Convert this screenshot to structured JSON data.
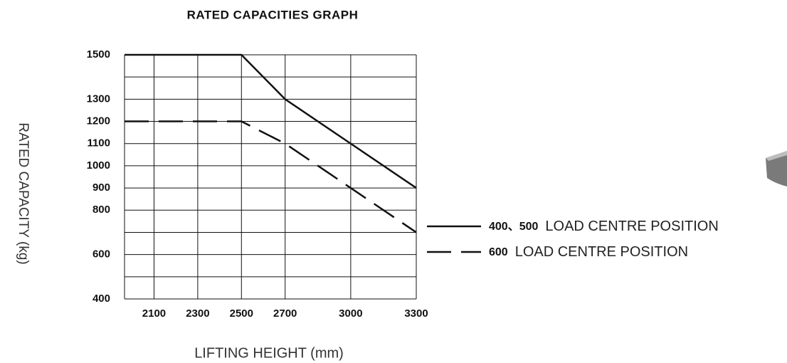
{
  "chart_data": {
    "type": "line",
    "title": "RATED CAPACITIES GRAPH",
    "x_label": "LIFTING HEIGHT (mm)",
    "y_label": "RATED CAPACITY (kg)",
    "x": [
      1965,
      2500,
      2700,
      3000,
      3300
    ],
    "series": [
      {
        "name": "400、500",
        "name_suffix": "LOAD CENTRE POSITION",
        "color": "#111111",
        "dash": "solid",
        "values": [
          1500,
          1500,
          1300,
          1100,
          900
        ]
      },
      {
        "name": "600",
        "name_suffix": "LOAD CENTRE POSITION",
        "color": "#111111",
        "dash": "dashed",
        "values": [
          1200,
          1200,
          1100,
          900,
          700
        ]
      }
    ],
    "xlim": [
      1965,
      3300
    ],
    "xticks": [
      2100,
      2300,
      2500,
      2700,
      3000,
      3300
    ],
    "ylim": [
      400,
      1500
    ],
    "yticks": [
      400,
      600,
      800,
      900,
      1000,
      1100,
      1200,
      1300,
      1500
    ],
    "yminor": [
      500,
      700,
      1400
    ],
    "grid": true
  }
}
